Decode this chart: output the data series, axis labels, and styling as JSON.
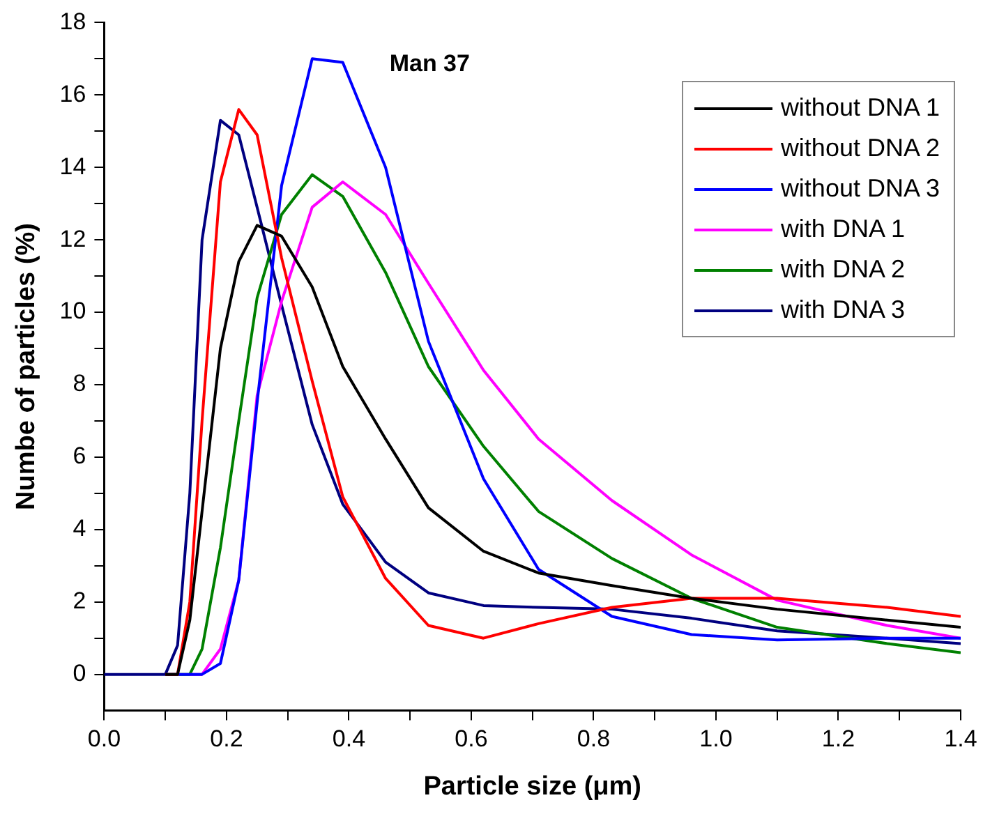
{
  "chart_data": {
    "type": "line",
    "title": "Man 37",
    "xlabel": "Particle size (μm)",
    "ylabel": "Numbe of particles (%)",
    "x": [
      0,
      0.1,
      0.12,
      0.14,
      0.16,
      0.19,
      0.22,
      0.25,
      0.29,
      0.34,
      0.39,
      0.46,
      0.53,
      0.62,
      0.71,
      0.83,
      0.96,
      1.1,
      1.28,
      1.4
    ],
    "series": [
      {
        "name": "without DNA 1",
        "color": "#000000",
        "values": [
          null,
          0,
          0,
          1.5,
          4.5,
          9.0,
          11.4,
          12.4,
          12.1,
          10.7,
          8.5,
          6.5,
          4.6,
          3.4,
          2.8,
          2.45,
          2.1,
          1.8,
          1.5,
          1.3
        ]
      },
      {
        "name": "without DNA 2",
        "color": "#ff0000",
        "values": [
          null,
          0,
          0,
          2,
          7,
          13.6,
          15.6,
          14.9,
          11.5,
          8.1,
          4.9,
          2.65,
          1.35,
          1.0,
          1.4,
          1.85,
          2.1,
          2.1,
          1.85,
          1.6
        ]
      },
      {
        "name": "without DNA 3",
        "color": "#0000ff",
        "values": [
          null,
          0,
          0,
          0,
          0,
          0.3,
          2.6,
          7.5,
          13.5,
          17.0,
          16.9,
          14.0,
          9.2,
          5.4,
          2.9,
          1.6,
          1.1,
          0.95,
          1.0,
          1.0
        ]
      },
      {
        "name": "with DNA 1",
        "color": "#ff00ff",
        "values": [
          null,
          null,
          null,
          0,
          0,
          0.7,
          2.6,
          7.7,
          10.3,
          12.9,
          13.6,
          12.7,
          10.8,
          8.4,
          6.5,
          4.8,
          3.3,
          2.05,
          1.35,
          1.0
        ]
      },
      {
        "name": "with DNA 2",
        "color": "#008000",
        "values": [
          null,
          0,
          0,
          0,
          0.7,
          3.5,
          7.0,
          10.4,
          12.7,
          13.8,
          13.2,
          11.1,
          8.5,
          6.3,
          4.5,
          3.2,
          2.1,
          1.3,
          0.85,
          0.6
        ]
      },
      {
        "name": "with DNA 3",
        "color": "#000080",
        "values": [
          0,
          0,
          0.8,
          5,
          12,
          15.3,
          14.9,
          12.9,
          10.2,
          6.9,
          4.7,
          3.1,
          2.25,
          1.9,
          1.85,
          1.8,
          1.55,
          1.2,
          1.0,
          0.85
        ]
      }
    ],
    "xlim": [
      0,
      1.4
    ],
    "ylim": [
      -1,
      18
    ],
    "xticks": [
      {
        "value": 0,
        "label": "0.0"
      },
      {
        "value": 0.1,
        "label": null
      },
      {
        "value": 0.2,
        "label": "0.2"
      },
      {
        "value": 0.3,
        "label": null
      },
      {
        "value": 0.4,
        "label": "0.4"
      },
      {
        "value": 0.5,
        "label": null
      },
      {
        "value": 0.6,
        "label": "0.6"
      },
      {
        "value": 0.7,
        "label": null
      },
      {
        "value": 0.8,
        "label": "0.8"
      },
      {
        "value": 0.9,
        "label": null
      },
      {
        "value": 1,
        "label": "1.0"
      },
      {
        "value": 1.1,
        "label": null
      },
      {
        "value": 1.2,
        "label": "1.2"
      },
      {
        "value": 1.3,
        "label": null
      },
      {
        "value": 1.4,
        "label": "1.4"
      }
    ],
    "yticks": [
      0,
      {
        "value": 1,
        "label": null
      },
      2,
      {
        "value": 3,
        "label": null
      },
      4,
      {
        "value": 5,
        "label": null
      },
      6,
      {
        "value": 7,
        "label": null
      },
      8,
      {
        "value": 9,
        "label": null
      },
      10,
      {
        "value": 11,
        "label": null
      },
      12,
      {
        "value": 13,
        "label": null
      },
      14,
      {
        "value": 15,
        "label": null
      },
      16,
      {
        "value": 17,
        "label": null
      },
      18
    ],
    "legend": "top right",
    "grid": false,
    "marker": "none",
    "line_style": "solid"
  }
}
